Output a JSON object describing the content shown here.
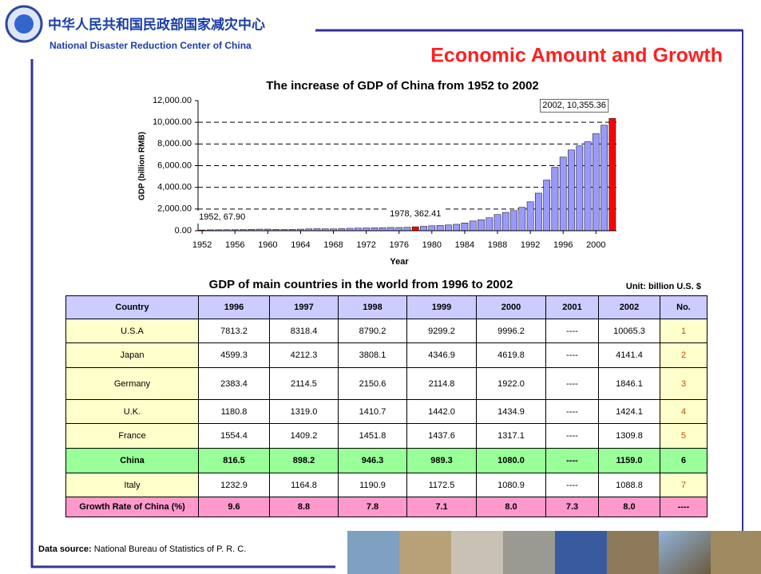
{
  "header": {
    "title_cn": "中华人民共和国民政部国家减灾中心",
    "title_en": "National Disaster Reduction Center of China",
    "slide_title": "Economic Amount and Growth"
  },
  "chart_data": {
    "type": "bar",
    "title": "The increase of GDP of China from 1952 to 2002",
    "x_label": "Year",
    "y_label": "GDP (billion RMB)",
    "x": [
      1952,
      1953,
      1954,
      1955,
      1956,
      1957,
      1958,
      1959,
      1960,
      1961,
      1962,
      1963,
      1964,
      1965,
      1966,
      1967,
      1968,
      1969,
      1970,
      1971,
      1972,
      1973,
      1974,
      1975,
      1976,
      1977,
      1978,
      1979,
      1980,
      1981,
      1982,
      1983,
      1984,
      1985,
      1986,
      1987,
      1988,
      1989,
      1990,
      1991,
      1992,
      1993,
      1994,
      1995,
      1996,
      1997,
      1998,
      1999,
      2000,
      2001,
      2002
    ],
    "values": [
      67.9,
      82.4,
      85.9,
      91.0,
      102.8,
      106.8,
      130.7,
      143.9,
      145.7,
      122.0,
      114.9,
      123.3,
      145.4,
      171.6,
      186.8,
      177.4,
      172.3,
      193.8,
      225.3,
      242.6,
      251.8,
      272.1,
      279.0,
      299.7,
      294.4,
      320.2,
      362.41,
      403.8,
      451.8,
      486.2,
      529.5,
      593.5,
      717.1,
      896.4,
      1020.2,
      1196.3,
      1492.8,
      1690.9,
      1854.8,
      2161.8,
      2663.8,
      3463.4,
      4675.9,
      5847.8,
      6788.5,
      7446.3,
      7834.5,
      8206.8,
      8946.8,
      9731.5,
      10355.36
    ],
    "color": "#9999ff",
    "highlight_color": "#ff0000",
    "annotations": [
      {
        "x": 1952,
        "text": "1952, 67.90"
      },
      {
        "x": 1978,
        "text": "1978, 362.41"
      },
      {
        "x": 2002,
        "text": "2002, 10,355.36",
        "box": true
      }
    ],
    "xlim": [
      1951.5,
      2002.5
    ],
    "xticks": [
      1952,
      1956,
      1960,
      1964,
      1968,
      1972,
      1976,
      1980,
      1984,
      1988,
      1992,
      1996,
      2000
    ],
    "ylim": [
      0,
      12000
    ],
    "yticks": [
      {
        "value": 0,
        "label": "0.00"
      },
      {
        "value": 2000,
        "label": "2,000.00"
      },
      {
        "value": 4000,
        "label": "4,000.00"
      },
      {
        "value": 6000,
        "label": "6,000.00"
      },
      {
        "value": 8000,
        "label": "8,000.00"
      },
      {
        "value": 10000,
        "label": "10,000.00"
      },
      {
        "value": 12000,
        "label": "12,000.00"
      }
    ],
    "grid": true
  },
  "table": {
    "title": "GDP of main countries in the world from 1996 to 2002",
    "unit": "Unit:  billion U.S. $",
    "header": [
      "Country",
      "1996",
      "1997",
      "1998",
      "1999",
      "2000",
      "2001",
      "2002",
      "No."
    ],
    "rows": [
      [
        "U.S.A",
        "7813.2",
        "8318.4",
        "8790.2",
        "9299.2",
        "9996.2",
        "----",
        "10065.3",
        "1"
      ],
      [
        "Japan",
        "4599.3",
        "4212.3",
        "3808.1",
        "4346.9",
        "4619.8",
        "----",
        "4141.4",
        "2"
      ],
      [
        "Germany",
        "2383.4",
        "2114.5",
        "2150.6",
        "2114.8",
        "1922.0",
        "----",
        "1846.1",
        "3"
      ],
      [
        "U.K.",
        "1180.8",
        "1319.0",
        "1410.7",
        "1442.0",
        "1434.9",
        "----",
        "1424.1",
        "4"
      ],
      [
        "France",
        "1554.4",
        "1409.2",
        "1451.8",
        "1437.6",
        "1317.1",
        "----",
        "1309.8",
        "5"
      ],
      [
        "China",
        "816.5",
        "898.2",
        "946.3",
        "989.3",
        "1080.0",
        "----",
        "1159.0",
        "6"
      ],
      [
        "Italy",
        "1232.9",
        "1164.8",
        "1190.9",
        "1172.5",
        "1080.9",
        "----",
        "1088.8",
        "7"
      ],
      [
        "Growth Rate of China (%)",
        "9.6",
        "8.8",
        "7.8",
        "7.1",
        "8.0",
        "7.3",
        "8.0",
        "----"
      ]
    ]
  },
  "footer": {
    "source_label": "Data source:",
    "source": "National Bureau of Statistics of P. R. C."
  }
}
